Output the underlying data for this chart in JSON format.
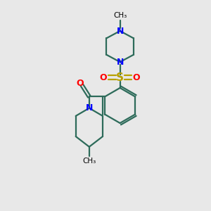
{
  "background_color": "#e8e8e8",
  "bond_color": "#2d6b5a",
  "N_color": "#0000ff",
  "O_color": "#ff0000",
  "S_color": "#b8a000",
  "text_color": "#000000",
  "line_width": 1.6,
  "figsize": [
    3.0,
    3.0
  ],
  "dpi": 100,
  "xlim": [
    0,
    10
  ],
  "ylim": [
    0,
    10
  ]
}
